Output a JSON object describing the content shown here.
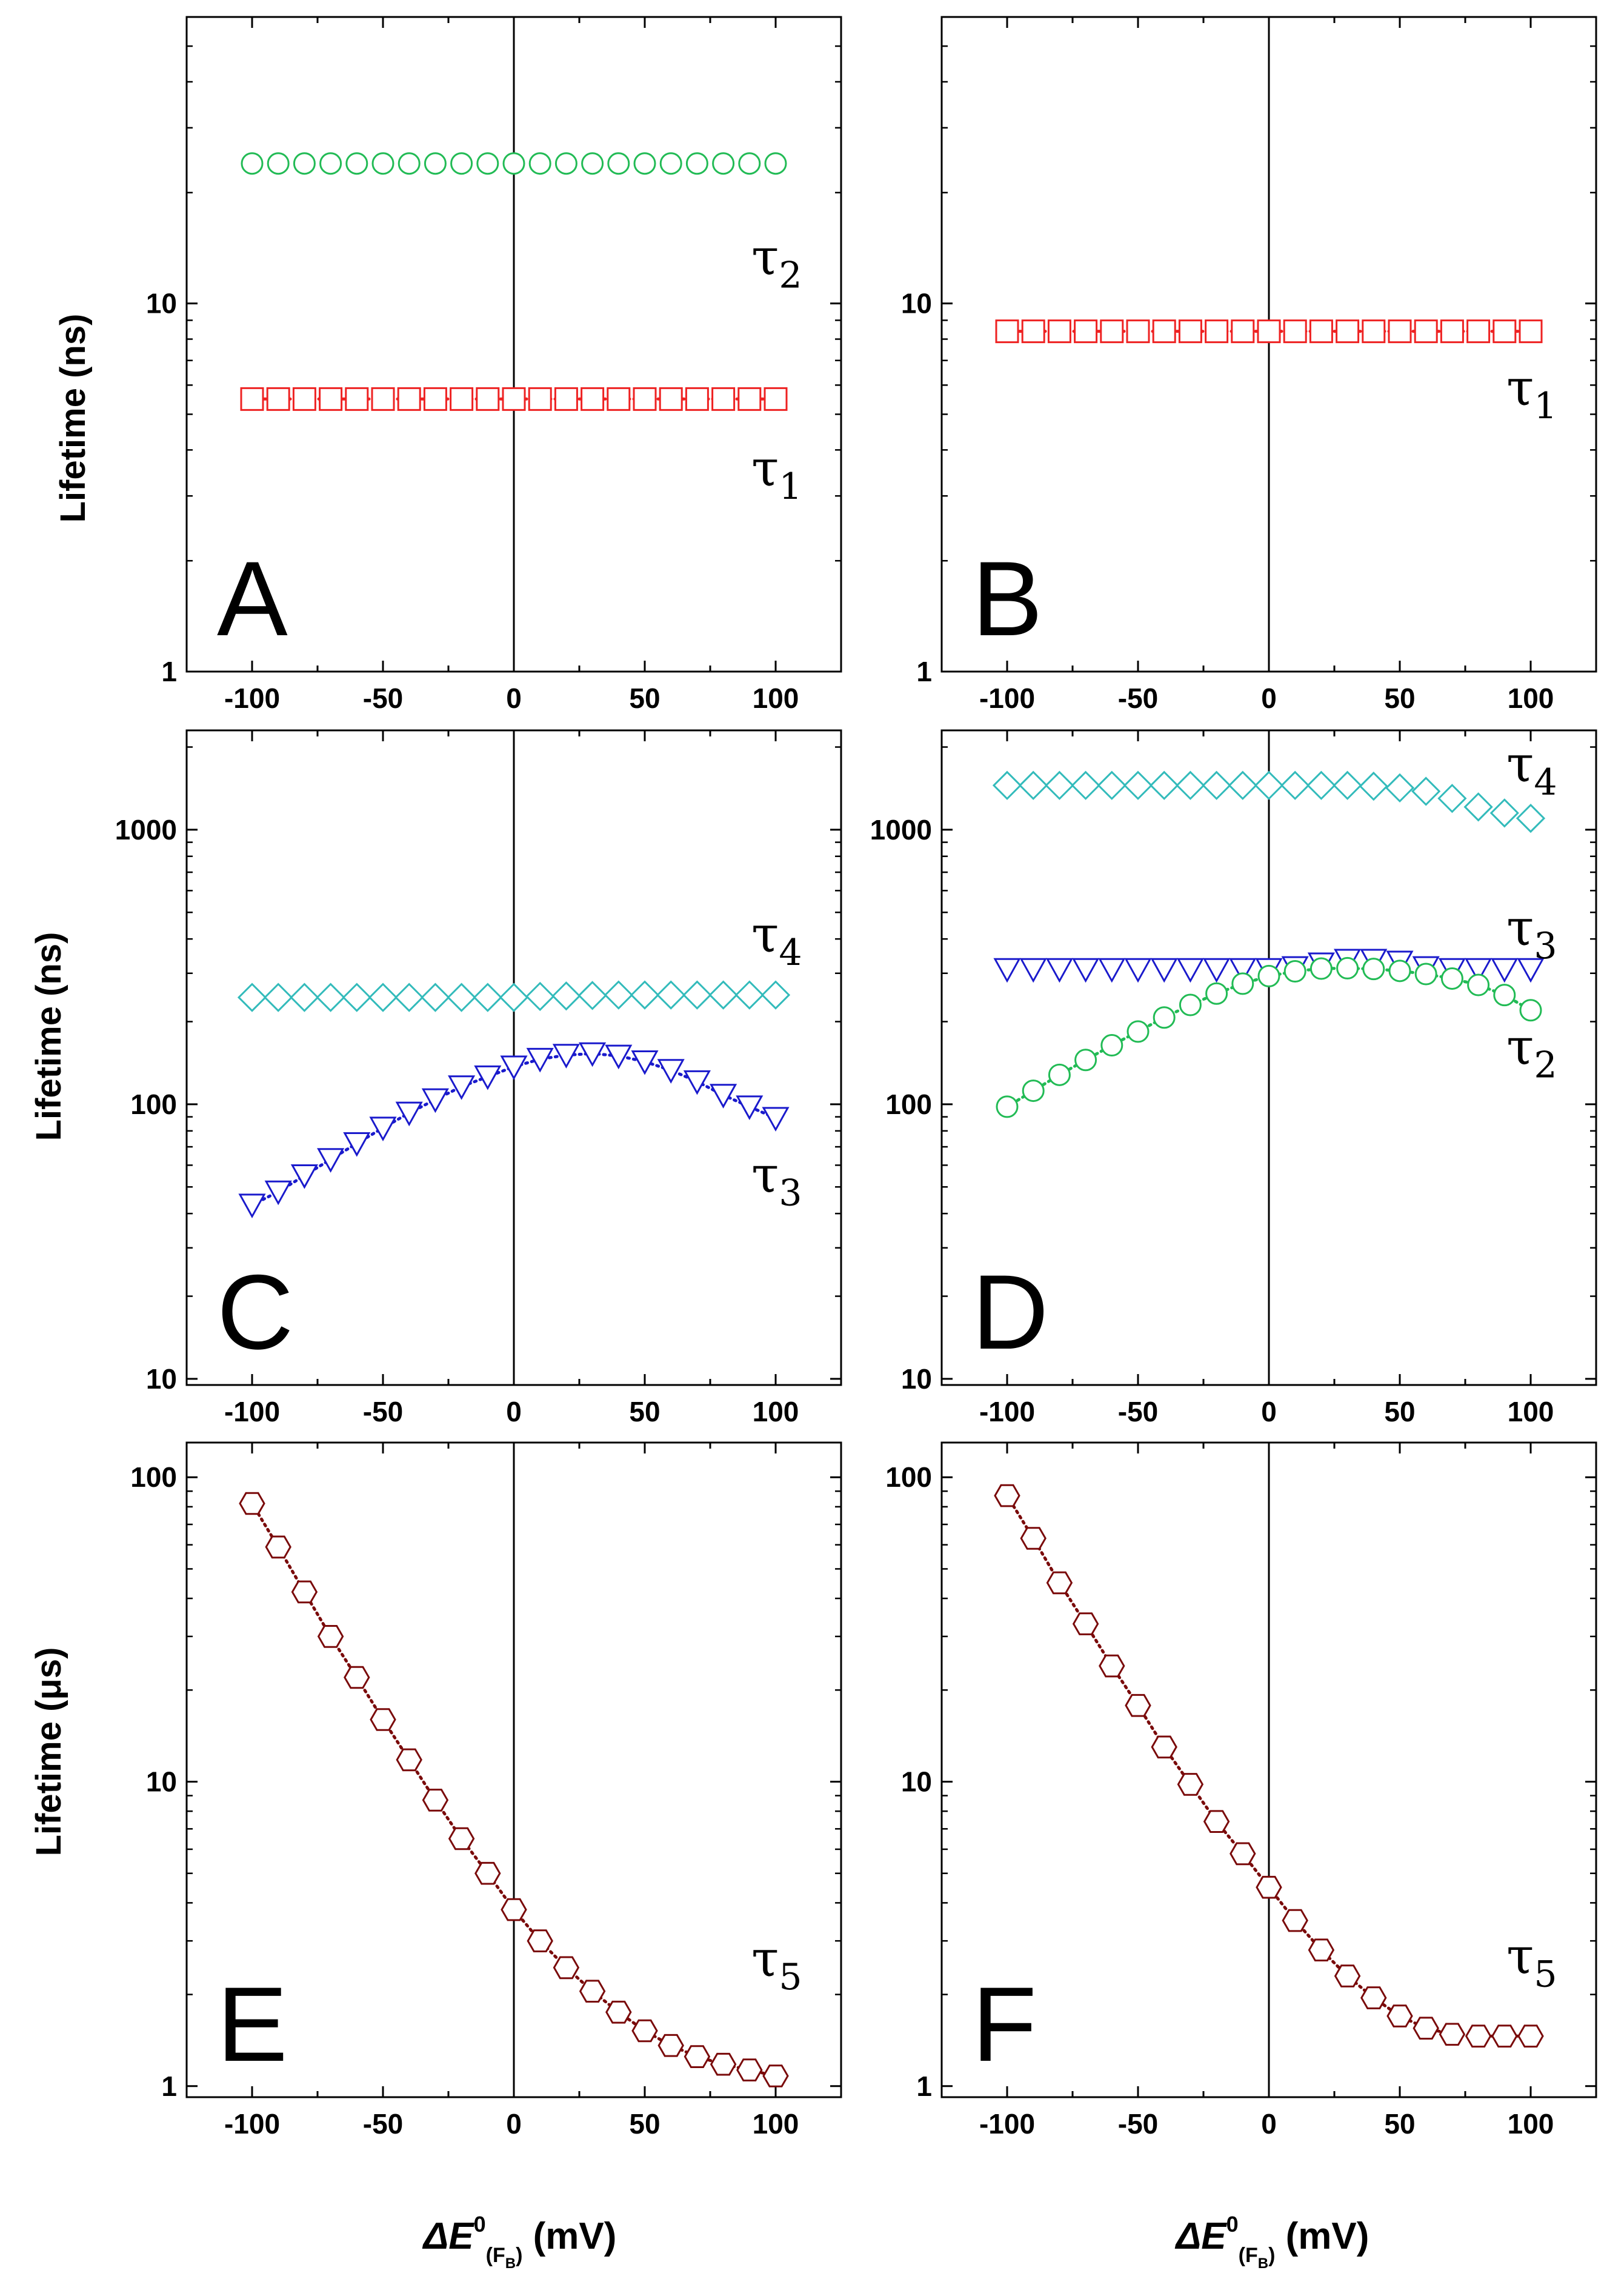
{
  "figure": {
    "x_axis_label": {
      "prefix": "ΔE",
      "superscript": "0",
      "subscript_main": "(F",
      "subscript_sub": "B",
      "subscript_close": ")",
      "unit": " (mV)"
    },
    "y_axis_labels": {
      "top": "Lifetime (ns)",
      "middle": "Lifetime (ns)",
      "bottom": "Lifetime (μs)"
    }
  },
  "chart_data": [
    {
      "panel": "A",
      "type": "scatter",
      "xlabel": "",
      "ylabel": "Lifetime (ns)",
      "xlim": [
        -125,
        125
      ],
      "ylim": [
        1,
        60
      ],
      "yscale": "log",
      "xticks": [
        -100,
        -50,
        0,
        50,
        100
      ],
      "xtick_labels": [
        "-100",
        "-50",
        "0",
        "50",
        "100"
      ],
      "yticks": [
        1,
        10
      ],
      "ytick_labels": [
        "1",
        "10"
      ],
      "series": [
        {
          "name": "τ2",
          "marker": "circle",
          "color": "#22bb55",
          "x": [
            -100,
            -90,
            -80,
            -70,
            -60,
            -50,
            -40,
            -30,
            -20,
            -10,
            0,
            10,
            20,
            30,
            40,
            50,
            60,
            70,
            80,
            90,
            100
          ],
          "values": [
            24,
            24,
            24,
            24,
            24,
            24,
            24,
            24,
            24,
            24,
            24,
            24,
            24,
            24,
            24,
            24,
            24,
            24,
            24,
            24,
            24
          ]
        },
        {
          "name": "τ1",
          "marker": "square",
          "color": "#ee2222",
          "dotted_line": true,
          "x": [
            -100,
            -90,
            -80,
            -70,
            -60,
            -50,
            -40,
            -30,
            -20,
            -10,
            0,
            10,
            20,
            30,
            40,
            50,
            60,
            70,
            80,
            90,
            100
          ],
          "values": [
            5.5,
            5.5,
            5.5,
            5.5,
            5.5,
            5.5,
            5.5,
            5.5,
            5.5,
            5.5,
            5.5,
            5.5,
            5.5,
            5.5,
            5.5,
            5.5,
            5.5,
            5.5,
            5.5,
            5.5,
            5.5
          ]
        }
      ],
      "annotations": [
        {
          "text": "τ",
          "sub": "2",
          "x": 100,
          "y": 12
        },
        {
          "text": "τ",
          "sub": "1",
          "x": 100,
          "y": 3.2
        },
        {
          "text": "A",
          "role": "panel-letter"
        }
      ]
    },
    {
      "panel": "B",
      "type": "scatter",
      "xlabel": "",
      "ylabel": "",
      "xlim": [
        -125,
        125
      ],
      "ylim": [
        1,
        60
      ],
      "yscale": "log",
      "xticks": [
        -100,
        -50,
        0,
        50,
        100
      ],
      "xtick_labels": [
        "-100",
        "-50",
        "0",
        "50",
        "100"
      ],
      "yticks": [
        1,
        10
      ],
      "ytick_labels": [
        "1",
        "10"
      ],
      "series": [
        {
          "name": "τ1",
          "marker": "square",
          "color": "#ee2222",
          "dotted_line": true,
          "x": [
            -100,
            -90,
            -80,
            -70,
            -60,
            -50,
            -40,
            -30,
            -20,
            -10,
            0,
            10,
            20,
            30,
            40,
            50,
            60,
            70,
            80,
            90,
            100
          ],
          "values": [
            8.4,
            8.4,
            8.4,
            8.4,
            8.4,
            8.4,
            8.4,
            8.4,
            8.4,
            8.4,
            8.4,
            8.4,
            8.4,
            8.4,
            8.4,
            8.4,
            8.4,
            8.4,
            8.4,
            8.4,
            8.4
          ]
        }
      ],
      "annotations": [
        {
          "text": "τ",
          "sub": "1",
          "x": 100,
          "y": 5.3
        },
        {
          "text": "B",
          "role": "panel-letter"
        }
      ]
    },
    {
      "panel": "C",
      "type": "scatter",
      "xlabel": "",
      "ylabel": "Lifetime (ns)",
      "xlim": [
        -125,
        125
      ],
      "ylim": [
        9.5,
        2300
      ],
      "yscale": "log",
      "xticks": [
        -100,
        -50,
        0,
        50,
        100
      ],
      "xtick_labels": [
        "-100",
        "-50",
        "0",
        "50",
        "100"
      ],
      "yticks": [
        10,
        100,
        1000
      ],
      "ytick_labels": [
        "10",
        "100",
        "1000"
      ],
      "series": [
        {
          "name": "τ4",
          "marker": "diamond",
          "color": "#33bbbb",
          "x": [
            -100,
            -90,
            -80,
            -70,
            -60,
            -50,
            -40,
            -30,
            -20,
            -10,
            0,
            10,
            20,
            30,
            40,
            50,
            60,
            70,
            80,
            90,
            100
          ],
          "values": [
            245,
            245,
            245,
            245,
            245,
            245,
            245,
            245,
            245,
            245,
            245,
            247,
            248,
            249,
            250,
            250,
            250,
            250,
            250,
            250,
            250
          ]
        },
        {
          "name": "τ3",
          "marker": "triangle-down",
          "color": "#1a1acc",
          "dotted_line": true,
          "x": [
            -100,
            -90,
            -80,
            -70,
            -60,
            -50,
            -40,
            -30,
            -20,
            -10,
            0,
            10,
            20,
            30,
            40,
            50,
            60,
            70,
            80,
            90,
            100
          ],
          "values": [
            43,
            48,
            55,
            63,
            72,
            82,
            93,
            104,
            116,
            126,
            137,
            146,
            151,
            153,
            150,
            143,
            133,
            121,
            108,
            98,
            89
          ]
        }
      ],
      "annotations": [
        {
          "text": "τ",
          "sub": "4",
          "x": 100,
          "y": 360
        },
        {
          "text": "τ",
          "sub": "3",
          "x": 100,
          "y": 48
        },
        {
          "text": "C",
          "role": "panel-letter"
        }
      ]
    },
    {
      "panel": "D",
      "type": "scatter",
      "xlabel": "",
      "ylabel": "",
      "xlim": [
        -125,
        125
      ],
      "ylim": [
        9.5,
        2300
      ],
      "yscale": "log",
      "xticks": [
        -100,
        -50,
        0,
        50,
        100
      ],
      "xtick_labels": [
        "-100",
        "-50",
        "0",
        "50",
        "100"
      ],
      "yticks": [
        10,
        100,
        1000
      ],
      "ytick_labels": [
        "10",
        "100",
        "1000"
      ],
      "series": [
        {
          "name": "τ4",
          "marker": "diamond",
          "color": "#33bbbb",
          "x": [
            -100,
            -90,
            -80,
            -70,
            -60,
            -50,
            -40,
            -30,
            -20,
            -10,
            0,
            10,
            20,
            30,
            40,
            50,
            60,
            70,
            80,
            90,
            100
          ],
          "values": [
            1450,
            1450,
            1450,
            1450,
            1450,
            1450,
            1450,
            1450,
            1450,
            1450,
            1450,
            1450,
            1450,
            1450,
            1440,
            1420,
            1380,
            1300,
            1210,
            1150,
            1100
          ]
        },
        {
          "name": "τ3",
          "marker": "triangle-down",
          "color": "#1a1acc",
          "x": [
            -100,
            -90,
            -80,
            -70,
            -60,
            -50,
            -40,
            -30,
            -20,
            -10,
            0,
            10,
            20,
            30,
            40,
            50,
            60,
            70,
            80,
            90,
            100
          ],
          "values": [
            310,
            310,
            310,
            310,
            310,
            310,
            310,
            310,
            310,
            310,
            310,
            315,
            325,
            335,
            335,
            330,
            315,
            310,
            310,
            310,
            310
          ]
        },
        {
          "name": "τ2",
          "marker": "circle",
          "color": "#22bb55",
          "dotted_line": true,
          "x": [
            -100,
            -90,
            -80,
            -70,
            -60,
            -50,
            -40,
            -30,
            -20,
            -10,
            0,
            10,
            20,
            30,
            40,
            50,
            60,
            70,
            80,
            90,
            100
          ],
          "values": [
            98,
            112,
            128,
            145,
            164,
            184,
            207,
            230,
            253,
            275,
            293,
            305,
            312,
            313,
            311,
            306,
            298,
            287,
            272,
            250,
            220
          ]
        }
      ],
      "annotations": [
        {
          "text": "τ",
          "sub": "4",
          "x": 100,
          "y": 1500
        },
        {
          "text": "τ",
          "sub": "3",
          "x": 100,
          "y": 380
        },
        {
          "text": "τ",
          "sub": "2",
          "x": 100,
          "y": 140
        },
        {
          "text": "D",
          "role": "panel-letter"
        }
      ]
    },
    {
      "panel": "E",
      "type": "scatter",
      "xlabel": "ΔE0(FB) (mV)",
      "ylabel": "Lifetime (μs)",
      "xlim": [
        -125,
        125
      ],
      "ylim": [
        0.92,
        130
      ],
      "yscale": "log",
      "xticks": [
        -100,
        -50,
        0,
        50,
        100
      ],
      "xtick_labels": [
        "-100",
        "-50",
        "0",
        "50",
        "100"
      ],
      "yticks": [
        1,
        10,
        100
      ],
      "ytick_labels": [
        "1",
        "10",
        "100"
      ],
      "series": [
        {
          "name": "τ5",
          "marker": "hexagon",
          "color": "#7a0a0a",
          "dotted_line": true,
          "x": [
            -100,
            -90,
            -80,
            -70,
            -60,
            -50,
            -40,
            -30,
            -20,
            -10,
            0,
            10,
            20,
            30,
            40,
            50,
            60,
            70,
            80,
            90,
            100
          ],
          "values": [
            82,
            59,
            42,
            30,
            22,
            16,
            11.8,
            8.7,
            6.5,
            5.0,
            3.8,
            3.0,
            2.45,
            2.05,
            1.75,
            1.52,
            1.36,
            1.25,
            1.18,
            1.13,
            1.08
          ]
        }
      ],
      "annotations": [
        {
          "text": "τ",
          "sub": "5",
          "x": 100,
          "y": 2.3
        },
        {
          "text": "E",
          "role": "panel-letter"
        }
      ]
    },
    {
      "panel": "F",
      "type": "scatter",
      "xlabel": "ΔE0(FB) (mV)",
      "ylabel": "",
      "xlim": [
        -125,
        125
      ],
      "ylim": [
        0.92,
        130
      ],
      "yscale": "log",
      "xticks": [
        -100,
        -50,
        0,
        50,
        100
      ],
      "xtick_labels": [
        "-100",
        "-50",
        "0",
        "50",
        "100"
      ],
      "yticks": [
        1,
        10,
        100
      ],
      "ytick_labels": [
        "1",
        "10",
        "100"
      ],
      "series": [
        {
          "name": "τ5",
          "marker": "hexagon",
          "color": "#7a0a0a",
          "dotted_line": true,
          "x": [
            -100,
            -90,
            -80,
            -70,
            -60,
            -50,
            -40,
            -30,
            -20,
            -10,
            0,
            10,
            20,
            30,
            40,
            50,
            60,
            70,
            80,
            90,
            100
          ],
          "values": [
            87,
            63,
            45,
            33,
            24,
            17.8,
            13,
            9.8,
            7.4,
            5.8,
            4.5,
            3.5,
            2.8,
            2.3,
            1.95,
            1.7,
            1.55,
            1.48,
            1.46,
            1.46,
            1.46
          ]
        }
      ],
      "annotations": [
        {
          "text": "τ",
          "sub": "5",
          "x": 100,
          "y": 2.35
        },
        {
          "text": "F",
          "role": "panel-letter"
        }
      ]
    }
  ]
}
